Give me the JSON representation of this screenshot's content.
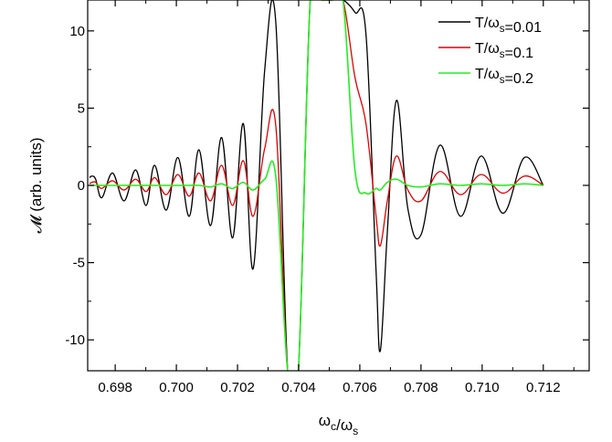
{
  "chart_data": {
    "type": "line",
    "title": "",
    "xlabel": "ω_c/ω_s",
    "ylabel": "𝓜 (arb. units)",
    "xlim": [
      0.6971,
      0.7135
    ],
    "ylim": [
      -12,
      12
    ],
    "grid": false,
    "legend_position": "top-right",
    "x_ticks": [
      0.698,
      0.7,
      0.702,
      0.704,
      0.706,
      0.708,
      0.71,
      0.712
    ],
    "x_tick_labels": [
      "0.698",
      "0.700",
      "0.702",
      "0.704",
      "0.706",
      "0.708",
      "0.710",
      "0.712"
    ],
    "y_ticks": [
      -10,
      -5,
      0,
      5,
      10
    ],
    "y_tick_labels": [
      "-10",
      "-5",
      "0",
      "5",
      "10"
    ],
    "x": [
      0.69716,
      0.69724,
      0.69736,
      0.69756,
      0.69791,
      0.69829,
      0.69867,
      0.69901,
      0.69929,
      0.69967,
      0.70005,
      0.70042,
      0.70074,
      0.70112,
      0.70148,
      0.70184,
      0.70219,
      0.70251,
      0.70289,
      0.70325,
      0.70364,
      0.70399,
      0.70438,
      0.70475,
      0.70509,
      0.70545,
      0.70584,
      0.7062,
      0.70653,
      0.70667,
      0.7069,
      0.7072,
      0.70757,
      0.708,
      0.70862,
      0.70929,
      0.70997,
      0.71068,
      0.71138,
      0.712
    ],
    "series": [
      {
        "name": "T/ω_s=0.01",
        "color": "#000000",
        "values": [
          0.5,
          0.6,
          0.4,
          -0.8,
          0.8,
          -1.0,
          1.0,
          -1.3,
          1.3,
          -1.6,
          1.8,
          -2.0,
          2.3,
          -2.6,
          3.1,
          -3.4,
          4.0,
          -5.4,
          7.5,
          10.6,
          -12.0,
          -12.0,
          12.0,
          12.0,
          12.0,
          12.0,
          11.2,
          9.8,
          -5.5,
          -10.7,
          -3.0,
          5.5,
          -1.5,
          -3.2,
          2.6,
          -2.0,
          1.9,
          -1.8,
          1.8,
          0.0
        ]
      },
      {
        "name": "T/ω_s=0.1",
        "color": "#e00000",
        "values": [
          0.1,
          0.2,
          0.2,
          -0.2,
          0.3,
          -0.3,
          0.4,
          -0.4,
          0.5,
          -0.6,
          0.7,
          -0.7,
          0.8,
          -1.0,
          1.3,
          -1.3,
          1.6,
          -2.0,
          2.4,
          3.9,
          -12.0,
          -12.0,
          12.0,
          12.0,
          12.0,
          12.0,
          7.0,
          4.0,
          -2.0,
          -3.9,
          -1.0,
          1.9,
          -0.3,
          -1.0,
          0.9,
          -0.6,
          0.7,
          -0.5,
          0.6,
          0.0
        ]
      },
      {
        "name": "T/ω_s=0.2",
        "color": "#22ee22",
        "values": [
          0.0,
          0.0,
          0.0,
          0.0,
          0.0,
          0.0,
          0.0,
          0.0,
          0.0,
          0.0,
          0.0,
          0.0,
          0.0,
          -0.1,
          0.1,
          -0.2,
          0.2,
          -0.3,
          0.4,
          0.6,
          -12.0,
          -12.0,
          12.0,
          12.0,
          12.0,
          12.0,
          1.0,
          -0.5,
          -0.2,
          -0.3,
          0.2,
          0.4,
          0.0,
          -0.1,
          0.1,
          0.0,
          0.1,
          0.0,
          0.1,
          0.0
        ]
      }
    ]
  }
}
